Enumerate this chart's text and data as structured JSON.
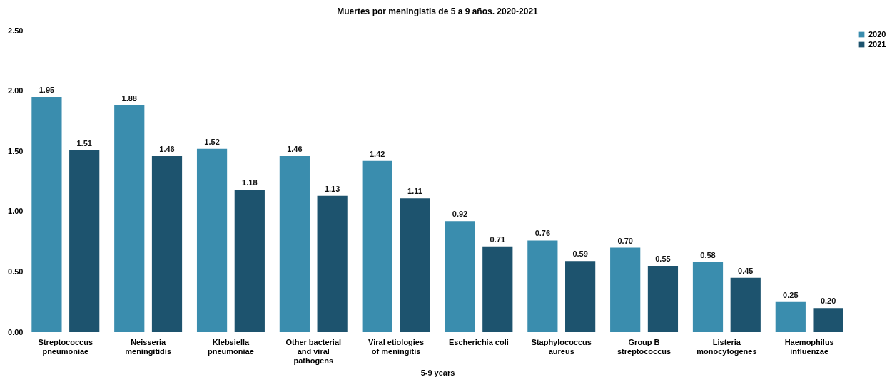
{
  "chart_data": {
    "type": "bar",
    "title": "Muertes por meningistis de 5 a 9 años. 2020-2021",
    "xlabel": "5-9 years",
    "categories": [
      "Streptococcus pneumoniae",
      "Neisseria meningitidis",
      "Klebsiella pneumoniae",
      "Other bacterial and viral pathogens",
      "Viral etiologies of meningitis",
      "Escherichia coli",
      "Staphylococcus aureus",
      "Group B streptococcus",
      "Listeria monocytogenes",
      "Haemophilus influenzae"
    ],
    "series": [
      {
        "name": "2020",
        "color": "#3a8dae",
        "values": [
          1.95,
          1.88,
          1.52,
          1.46,
          1.42,
          0.92,
          0.76,
          0.7,
          0.58,
          0.25
        ],
        "value_labels": [
          "1.95",
          "1.88",
          "1.52",
          "1.46",
          "1.42",
          "0.92",
          "0.76",
          "0.70",
          "0.58",
          "0.25"
        ]
      },
      {
        "name": "2021",
        "color": "#1d536e",
        "values": [
          1.51,
          1.46,
          1.18,
          1.13,
          1.11,
          0.71,
          0.59,
          0.55,
          0.45,
          0.2
        ],
        "value_labels": [
          "1.51",
          "1.46",
          "1.18",
          "1.13",
          "1.11",
          "0.71",
          "0.59",
          "0.55",
          "0.45",
          "0.20"
        ]
      }
    ],
    "ylim": [
      0,
      2.5
    ],
    "yticks": [
      {
        "value": 0,
        "label": "0.00"
      },
      {
        "value": 0.5,
        "label": "0.50"
      },
      {
        "value": 1,
        "label": "1.00"
      },
      {
        "value": 1.5,
        "label": "1.50"
      },
      {
        "value": 2,
        "label": "2.00"
      },
      {
        "value": 2.5,
        "label": "2.50"
      }
    ],
    "grid": false,
    "legend": "right"
  }
}
